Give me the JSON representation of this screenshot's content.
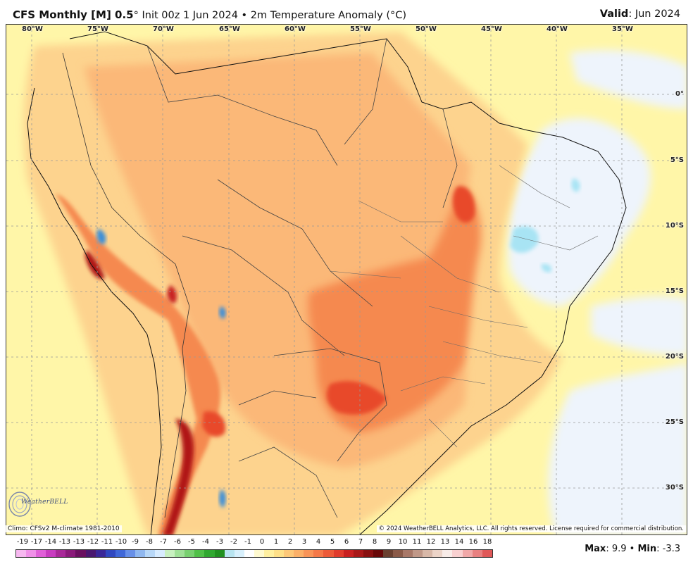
{
  "header": {
    "title_main": "CFS Monthly [M] 0.5",
    "title_rest": "° Init 00z 1 Jun 2024 • 2m Temperature Anomaly (°C)",
    "valid_label": "Valid",
    "valid_value": ": Jun 2024"
  },
  "map": {
    "lon_labels": [
      "80°W",
      "75°W",
      "70°W",
      "65°W",
      "60°W",
      "55°W",
      "50°W",
      "45°W",
      "40°W",
      "35°W"
    ],
    "lat_labels": [
      "0°",
      "5°S",
      "10°S",
      "15°S",
      "20°S",
      "25°S",
      "30°S"
    ],
    "colors": {
      "ocean_background": "#fff6a8",
      "land_warm_light": "#fdd38e",
      "land_warm": "#fbb878",
      "warm_strong": "#f5894f",
      "hot": "#e8492a",
      "very_hot": "#b01818",
      "cool_light": "#eef4fc",
      "cool": "#a8e4f4",
      "cold": "#3a8ed8"
    }
  },
  "logo": {
    "text": "WeatherBELL",
    "icon": "weatherbell-swirl-logo"
  },
  "footer": {
    "climo": "Climo: CFSv2 M-climate 1981-2010",
    "copyright": "© 2024 WeatherBELL Analytics, LLC. All rights reserved. License required for commercial distribution."
  },
  "legend": {
    "labels": [
      "-19",
      "-17",
      "-14",
      "-13",
      "-13",
      "-12",
      "-11",
      "-10",
      "-9",
      "-8",
      "-7",
      "-6",
      "-5",
      "-4",
      "-3",
      "-2",
      "-1",
      "0",
      "1",
      "2",
      "3",
      "4",
      "5",
      "6",
      "7",
      "8",
      "9",
      "10",
      "11",
      "12",
      "13",
      "14",
      "16",
      "18"
    ],
    "colors": [
      "#f7b8f0",
      "#f090e8",
      "#e060d8",
      "#c83cc0",
      "#a82898",
      "#8a1a7a",
      "#6a1060",
      "#4a1870",
      "#3a2898",
      "#3048c0",
      "#4068d8",
      "#6890e8",
      "#90b8f0",
      "#b8d8f8",
      "#d8ecff",
      "#c8f0c0",
      "#a0e098",
      "#78d070",
      "#50c048",
      "#30a830",
      "#209020",
      "#b8e4f0",
      "#d8f0fc",
      "#ffffff",
      "#fffad0",
      "#fff0a0",
      "#fee088",
      "#fdc878",
      "#fbb068",
      "#f89458",
      "#f47848",
      "#ec5a38",
      "#e03c2c",
      "#c82020",
      "#a81818",
      "#881010",
      "#680808",
      "#6a4030",
      "#8a5a48",
      "#a87868",
      "#c09888",
      "#d8b8a8",
      "#ecd4c8",
      "#f8ece8",
      "#f8d0d0",
      "#f0a8a8",
      "#e88080",
      "#e05858"
    ]
  },
  "stats": {
    "max_label": "Max",
    "max_value": ": 9.9",
    "separator": " • ",
    "min_label": "Min",
    "min_value": ": -3.3"
  }
}
